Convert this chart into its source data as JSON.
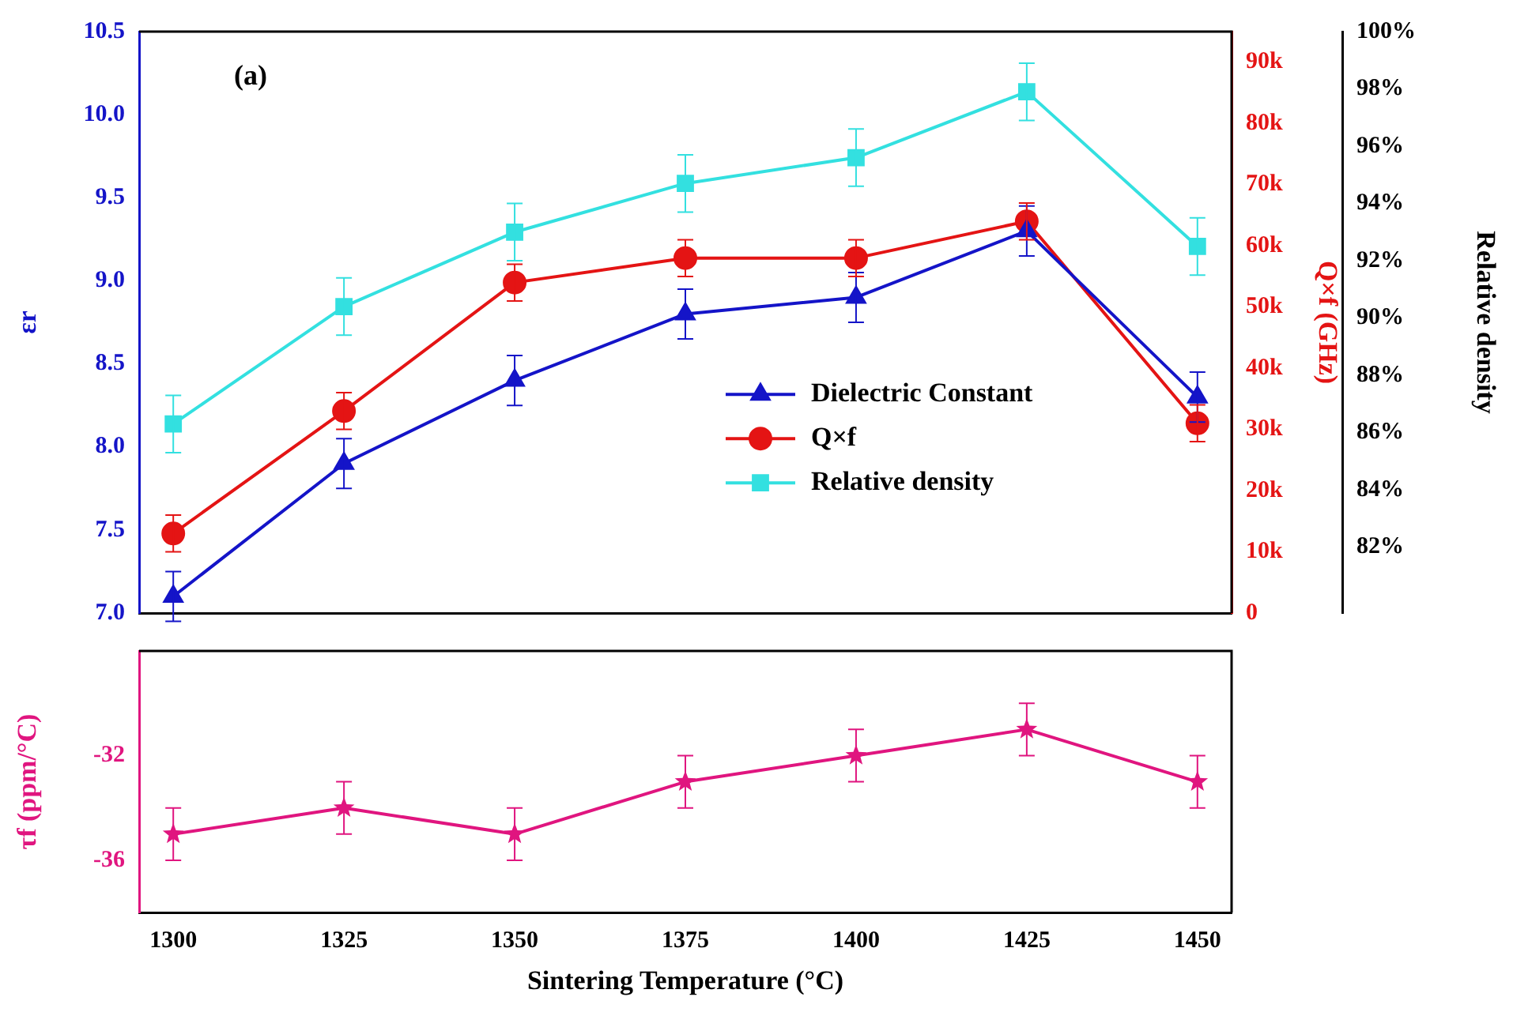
{
  "chart_data": [
    {
      "type": "line",
      "annotations": [
        "(a)"
      ],
      "ylabel": "εr",
      "y2label": "Q×f (GHz)",
      "y3label": "Relative density",
      "x": [
        1300,
        1325,
        1350,
        1375,
        1400,
        1425,
        1450
      ],
      "xlim": [
        1295,
        1455
      ],
      "tick_labels": "y",
      "grid": false,
      "legend": "right",
      "line_style": "solid",
      "ylim": [
        7.0,
        10.5
      ],
      "yticks": [
        {
          "value": 7,
          "label": "7.0"
        },
        7.5,
        {
          "value": 8,
          "label": "8.0"
        },
        8.5,
        {
          "value": 9,
          "label": "9.0"
        },
        9.5,
        {
          "value": 10,
          "label": "10.0"
        },
        10.5
      ],
      "y2lim": [
        0,
        95000
      ],
      "y2ticks": [
        0,
        {
          "value": 10000,
          "label": "10k"
        },
        {
          "value": 20000,
          "label": "20k"
        },
        {
          "value": 30000,
          "label": "30k"
        },
        {
          "value": 40000,
          "label": "40k"
        },
        {
          "value": 50000,
          "label": "50k"
        },
        {
          "value": 60000,
          "label": "60k"
        },
        {
          "value": 70000,
          "label": "70k"
        },
        {
          "value": 80000,
          "label": "80k"
        },
        {
          "value": 90000,
          "label": "90k"
        }
      ],
      "y3lim": [
        79.7,
        100
      ],
      "y3ticks": [
        {
          "value": 82,
          "label": "82%"
        },
        {
          "value": 84,
          "label": "84%"
        },
        {
          "value": 86,
          "label": "86%"
        },
        {
          "value": 88,
          "label": "88%"
        },
        {
          "value": 90,
          "label": "90%"
        },
        {
          "value": 92,
          "label": "92%"
        },
        {
          "value": 94,
          "label": "94%"
        },
        {
          "value": 96,
          "label": "96%"
        },
        {
          "value": 98,
          "label": "98%"
        },
        {
          "value": 100,
          "label": "100%"
        }
      ],
      "series": [
        {
          "name": "Dielectric Constant",
          "color": "#1414c8",
          "marker": "triangle",
          "values": [
            7.1,
            7.9,
            8.4,
            8.8,
            8.9,
            9.3,
            8.3
          ],
          "errors": [
            0.15,
            0.15,
            0.15,
            0.15,
            0.15,
            0.15,
            0.15
          ]
        },
        {
          "name": "Q×f",
          "color": "#e41414",
          "marker": "circle",
          "axis": "y2",
          "values": [
            13000,
            33000,
            54000,
            58000,
            58000,
            64000,
            31000
          ],
          "errors": [
            3000,
            3000,
            3000,
            3000,
            3000,
            3000,
            3000
          ]
        },
        {
          "name": "Relative density",
          "color": "#33e0e0",
          "marker": "square",
          "axis": "y3",
          "values": [
            86.3,
            90.4,
            93.0,
            94.7,
            95.6,
            97.9,
            92.5
          ],
          "errors": [
            1,
            1,
            1,
            1,
            1,
            1,
            1
          ]
        }
      ]
    },
    {
      "type": "line",
      "xlabel": "Sintering Temperature (°C)",
      "ylabel": "τf (ppm/°C)",
      "x": [
        1300,
        1325,
        1350,
        1375,
        1400,
        1425,
        1450
      ],
      "xlim": [
        1295,
        1455
      ],
      "xticks": [
        1300,
        1325,
        1350,
        1375,
        1400,
        1425,
        1450
      ],
      "grid": false,
      "line_style": "solid",
      "ylim": [
        -38,
        -28
      ],
      "yticks": [
        -36,
        -32
      ],
      "series": [
        {
          "color": "#e0157f",
          "marker": "star",
          "values": [
            -35,
            -34,
            -35,
            -33,
            -32,
            -31,
            -33
          ],
          "errors": [
            1,
            1,
            1,
            1,
            1,
            1,
            1
          ]
        }
      ]
    }
  ]
}
